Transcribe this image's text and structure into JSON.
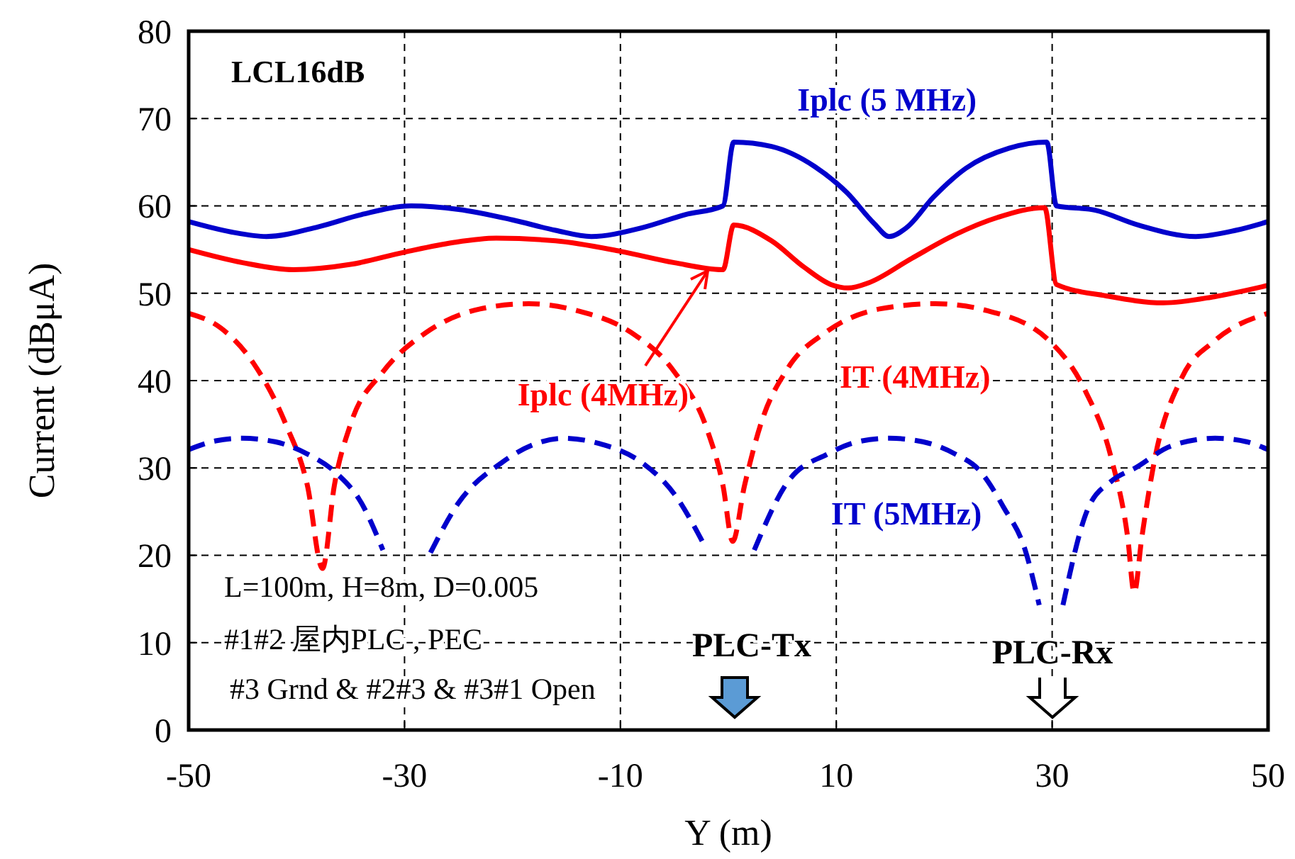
{
  "chart_data": {
    "type": "line",
    "xlabel": "Y (m)",
    "ylabel": "Current  (dBμA)",
    "xlim": [
      -50,
      50
    ],
    "xticks": [
      -50,
      -30,
      -10,
      10,
      30,
      50
    ],
    "ylim": [
      0,
      80
    ],
    "yticks": [
      0,
      10,
      20,
      30,
      40,
      50,
      60,
      70,
      80
    ],
    "grid": true,
    "marker": "none",
    "series": [
      {
        "name": "Iplc (5 MHz)",
        "color": "#0000cc",
        "line_style": "solid",
        "x": [
          -50,
          -46,
          -42.8,
          -38,
          -34,
          -29.4,
          -25,
          -20,
          -16,
          -12.7,
          -8,
          -4,
          -0.5,
          0.5,
          4,
          8,
          11,
          13.5,
          14.9,
          16.5,
          19,
          22,
          26,
          29.5,
          30.4,
          34,
          38,
          43.3,
          47,
          50
        ],
        "values": [
          58.2,
          57,
          56.5,
          57.6,
          59,
          60,
          59.6,
          58.4,
          57.2,
          56.5,
          57.5,
          59,
          60,
          67.3,
          66.8,
          64.5,
          61.5,
          58,
          56.5,
          57.5,
          61,
          64.3,
          66.6,
          67.3,
          60,
          59.5,
          57.8,
          56.5,
          57.2,
          58.2
        ]
      },
      {
        "name": "Iplc (4MHz)",
        "color": "#ff0000",
        "line_style": "solid",
        "x": [
          -50,
          -45,
          -40.3,
          -35,
          -30,
          -25.5,
          -21.5,
          -16,
          -10,
          -5,
          -0.5,
          0.5,
          4,
          7,
          9.5,
          11.1,
          13,
          17,
          21,
          25,
          29.3,
          30.4,
          35,
          40.3,
          45,
          50
        ],
        "values": [
          55,
          53.5,
          52.7,
          53.3,
          54.7,
          55.8,
          56.3,
          56,
          54.8,
          53.5,
          52.7,
          57.8,
          56,
          53,
          51,
          50.6,
          51.2,
          54,
          56.7,
          58.7,
          59.8,
          51,
          49.7,
          48.9,
          49.6,
          50.9
        ]
      },
      {
        "name": "IT (4MHz)",
        "color": "#ff0000",
        "line_style": "dashed",
        "x": [
          -50,
          -47,
          -44,
          -41,
          -39,
          -37.6,
          -36.5,
          -35,
          -32,
          -28,
          -23,
          -18.5,
          -14,
          -9,
          -5,
          -2,
          -0.5,
          0.4,
          1.5,
          3,
          5.5,
          9,
          14,
          19.2,
          24,
          29.7,
          33,
          35.5,
          37,
          37.6,
          38.3,
          39.5,
          42,
          45,
          50
        ],
        "values": [
          47.7,
          46,
          42,
          35,
          28,
          18.5,
          28,
          35,
          41,
          45.5,
          48.2,
          48.8,
          48,
          45.5,
          41,
          34.5,
          28,
          21.6,
          28,
          35,
          41.4,
          45.5,
          48.2,
          48.8,
          48,
          44.6,
          39,
          31,
          22,
          15.7,
          22,
          31,
          40.3,
          44.5,
          47.7
        ]
      },
      {
        "name": "IT (5MHz)",
        "color": "#0000cc",
        "line_style": "dashed",
        "x": [
          -50,
          -47.5,
          -45.1,
          -42,
          -39,
          -36.4,
          -34,
          -32,
          -30,
          -27.6,
          -25,
          -21,
          -18,
          -15.3,
          -12,
          -8,
          -5,
          -2.2,
          0,
          2.4,
          5.5,
          9.2,
          12,
          14.9,
          18,
          21,
          23.2,
          25.5,
          27.5,
          28.8,
          30,
          31,
          33.3,
          35.5,
          37.7,
          41,
          45.1,
          48,
          50
        ],
        "values": [
          32.1,
          33.1,
          33.4,
          33,
          31.6,
          29.5,
          26,
          20.6,
          null,
          20.3,
          26,
          30.6,
          32.7,
          33.4,
          32.8,
          30.6,
          27,
          21.1,
          null,
          20.6,
          28.4,
          31.6,
          33,
          33.4,
          33,
          31.6,
          29.8,
          25.5,
          20.6,
          14.3,
          null,
          14.3,
          25.3,
          28.5,
          30,
          32.5,
          33.4,
          33,
          32.1
        ]
      }
    ],
    "annotations": [
      "LCL16dB",
      "L=100m, H=8m,  D=0.005",
      "#1#2 屋内PLC , PEC",
      "#3 Grnd & #2#3 & #3#1 Open",
      "PLC-Tx",
      "PLC-Rx"
    ]
  }
}
